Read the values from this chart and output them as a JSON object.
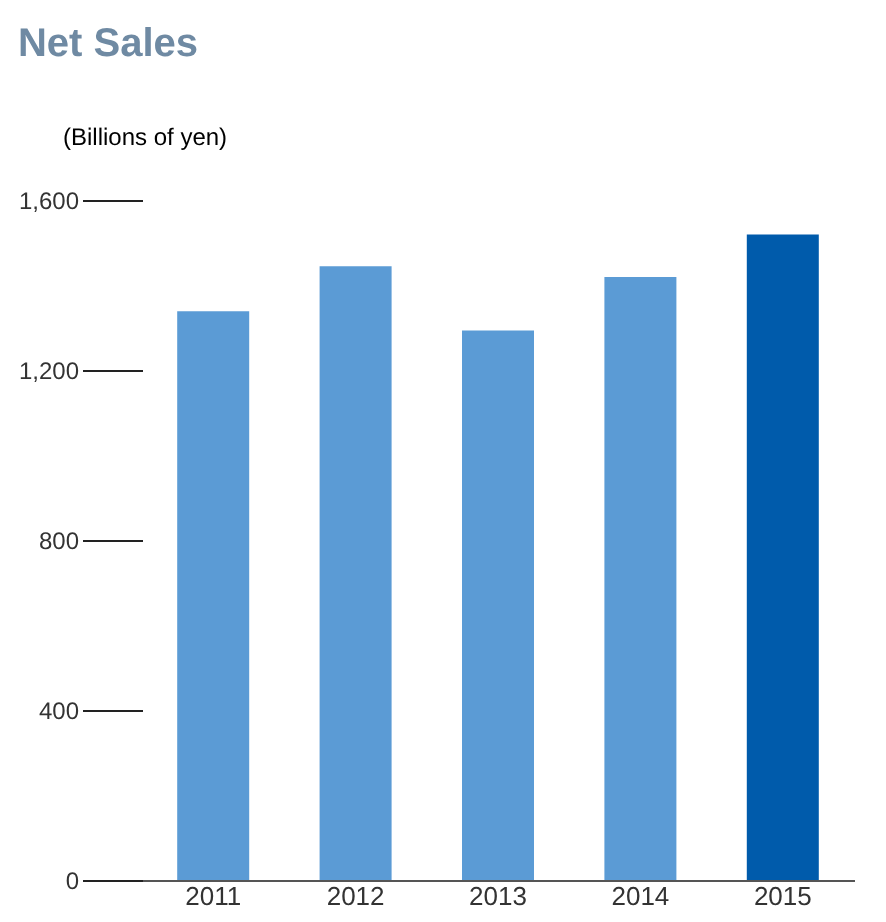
{
  "chart_data": {
    "type": "bar",
    "title": "Net Sales",
    "ylabel": "(Billions of yen)",
    "categories": [
      "2011",
      "2012",
      "2013",
      "2014",
      "2015"
    ],
    "values": [
      1338,
      1444,
      1293,
      1419,
      1519
    ],
    "colors": [
      "#5b9bd5",
      "#5b9bd5",
      "#5b9bd5",
      "#5b9bd5",
      "#005bab"
    ],
    "ylim": [
      0,
      1600
    ],
    "yticks": [
      0,
      {
        "value": 400,
        "label": "400"
      },
      {
        "value": 800,
        "label": "800"
      },
      {
        "value": 1200,
        "label": "1,200"
      },
      {
        "value": 1600,
        "label": "1,600"
      }
    ],
    "grid": false
  }
}
